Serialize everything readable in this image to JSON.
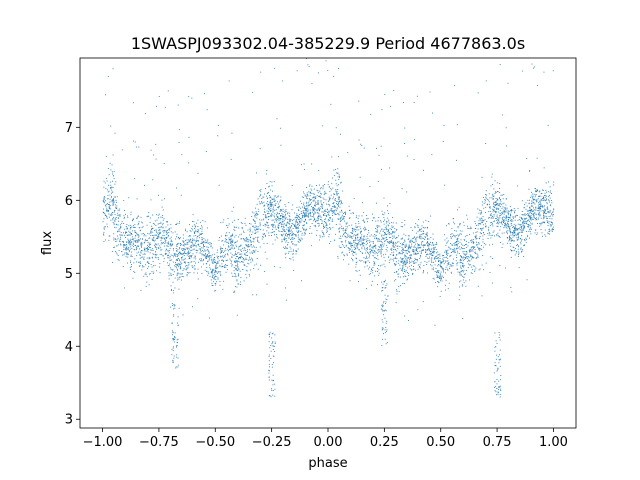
{
  "chart_data": {
    "type": "scatter",
    "title": "1SWASPJ093302.04-385229.9 Period 4677863.0s",
    "xlabel": "phase",
    "ylabel": "flux",
    "xlim": [
      -1.1,
      1.1
    ],
    "ylim": [
      2.88,
      7.95
    ],
    "xticks": [
      -1.0,
      -0.75,
      -0.5,
      -0.25,
      0.0,
      0.25,
      0.5,
      0.75,
      1.0
    ],
    "xtick_labels": [
      "−1.00",
      "−0.75",
      "−0.50",
      "−0.25",
      "0.00",
      "0.25",
      "0.50",
      "0.75",
      "1.00"
    ],
    "yticks": [
      3,
      4,
      5,
      6,
      7
    ],
    "ytick_labels": [
      "3",
      "4",
      "5",
      "6",
      "7"
    ],
    "grid": false,
    "marker_color": "#1f77b4",
    "series": [
      {
        "profile": [
          {
            "phase": 0.0,
            "flux": 5.85,
            "spread": 0.35
          },
          {
            "phase": 0.03,
            "flux": 6.1,
            "spread": 0.5
          },
          {
            "phase": 0.07,
            "flux": 5.6,
            "spread": 0.4
          },
          {
            "phase": 0.1,
            "flux": 5.45,
            "spread": 0.35
          },
          {
            "phase": 0.15,
            "flux": 5.45,
            "spread": 0.4
          },
          {
            "phase": 0.19,
            "flux": 5.3,
            "spread": 0.45
          },
          {
            "phase": 0.22,
            "flux": 5.4,
            "spread": 0.4
          },
          {
            "phase": 0.27,
            "flux": 5.55,
            "spread": 0.35
          },
          {
            "phase": 0.3,
            "flux": 5.2,
            "spread": 0.45
          },
          {
            "phase": 0.35,
            "flux": 5.2,
            "spread": 0.25
          },
          {
            "phase": 0.4,
            "flux": 5.4,
            "spread": 0.3
          },
          {
            "phase": 0.45,
            "flux": 5.35,
            "spread": 0.25
          },
          {
            "phase": 0.5,
            "flux": 5.05,
            "spread": 0.25
          },
          {
            "phase": 0.55,
            "flux": 5.4,
            "spread": 0.35
          },
          {
            "phase": 0.6,
            "flux": 5.2,
            "spread": 0.4
          },
          {
            "phase": 0.65,
            "flux": 5.4,
            "spread": 0.4
          },
          {
            "phase": 0.7,
            "flux": 5.8,
            "spread": 0.45
          },
          {
            "phase": 0.76,
            "flux": 5.85,
            "spread": 0.3
          },
          {
            "phase": 0.8,
            "flux": 5.65,
            "spread": 0.3
          },
          {
            "phase": 0.85,
            "flux": 5.55,
            "spread": 0.3
          },
          {
            "phase": 0.9,
            "flux": 5.85,
            "spread": 0.25
          },
          {
            "phase": 0.95,
            "flux": 5.9,
            "spread": 0.3
          },
          {
            "phase": 1.0,
            "flux": 5.85,
            "spread": 0.35
          }
        ],
        "dips": [
          {
            "phase": 0.25,
            "flux_min": 4.0,
            "flux_max": 4.9
          },
          {
            "phase": 0.75,
            "flux_min": 3.3,
            "flux_max": 4.2
          },
          {
            "phase": -0.25,
            "flux_min": 3.3,
            "flux_max": 4.2
          },
          {
            "phase": -0.68,
            "flux_min": 3.7,
            "flux_max": 4.6
          }
        ],
        "mirror_about_zero": true
      }
    ]
  }
}
